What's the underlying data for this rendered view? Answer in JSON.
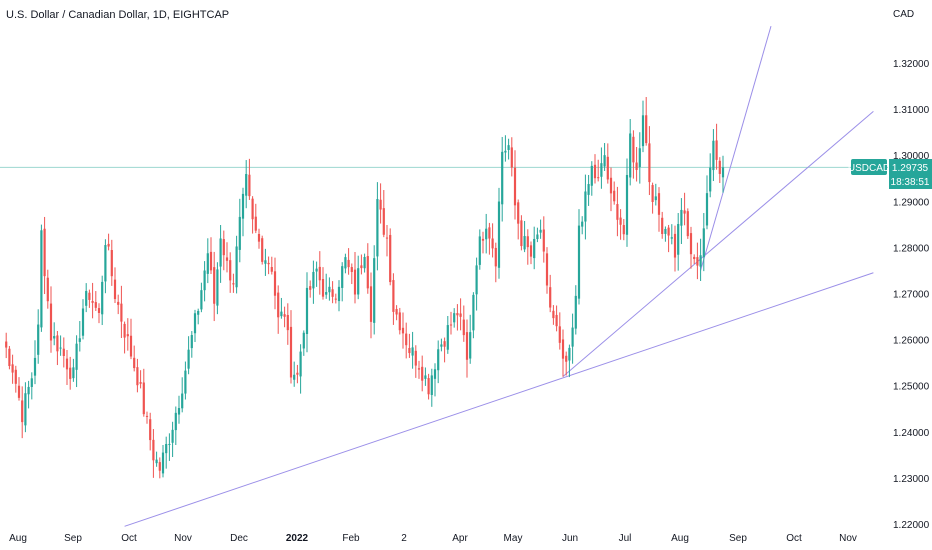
{
  "chart_data": {
    "type": "candlestick",
    "title": "U.S. Dollar / Canadian Dollar, 1D, EIGHTCAP",
    "currency": "CAD",
    "symbol": "USDCAD",
    "last_price": "1.29735",
    "countdown": "18:38:51",
    "y_ticks": [
      "1.32000",
      "1.31000",
      "1.30000",
      "1.29000",
      "1.28000",
      "1.27000",
      "1.26000",
      "1.25000",
      "1.24000",
      "1.23000",
      "1.22000"
    ],
    "ylim": [
      1.22,
      1.325
    ],
    "x_ticks": [
      "Aug",
      "Sep",
      "Oct",
      "Nov",
      "Dec",
      "2022",
      "Feb",
      "2",
      "Apr",
      "May",
      "Jun",
      "Jul",
      "Aug",
      "Sep",
      "Oct",
      "Nov"
    ],
    "colors": {
      "up": "#26a69a",
      "down": "#ef5350",
      "trend": "#9b8fe8",
      "price_line": "#26a69a",
      "text": "#131722"
    },
    "anchors": [
      {
        "i": 0,
        "c": 1.26
      },
      {
        "i": 3,
        "c": 1.254
      },
      {
        "i": 6,
        "c": 1.244
      },
      {
        "i": 9,
        "c": 1.252
      },
      {
        "i": 11,
        "c": 1.262
      },
      {
        "i": 12,
        "c": 1.283
      },
      {
        "i": 15,
        "c": 1.261
      },
      {
        "i": 18,
        "c": 1.258
      },
      {
        "i": 22,
        "c": 1.252
      },
      {
        "i": 25,
        "c": 1.267
      },
      {
        "i": 27,
        "c": 1.27
      },
      {
        "i": 30,
        "c": 1.265
      },
      {
        "i": 32,
        "c": 1.282
      },
      {
        "i": 35,
        "c": 1.27
      },
      {
        "i": 38,
        "c": 1.262
      },
      {
        "i": 42,
        "c": 1.252
      },
      {
        "i": 44,
        "c": 1.245
      },
      {
        "i": 47,
        "c": 1.235
      },
      {
        "i": 49,
        "c": 1.232
      },
      {
        "i": 52,
        "c": 1.239
      },
      {
        "i": 55,
        "c": 1.247
      },
      {
        "i": 58,
        "c": 1.257
      },
      {
        "i": 61,
        "c": 1.267
      },
      {
        "i": 64,
        "c": 1.279
      },
      {
        "i": 66,
        "c": 1.268
      },
      {
        "i": 68,
        "c": 1.283
      },
      {
        "i": 70,
        "c": 1.276
      },
      {
        "i": 72,
        "c": 1.273
      },
      {
        "i": 74,
        "c": 1.285
      },
      {
        "i": 76,
        "c": 1.294
      },
      {
        "i": 78,
        "c": 1.285
      },
      {
        "i": 81,
        "c": 1.279
      },
      {
        "i": 84,
        "c": 1.276
      },
      {
        "i": 86,
        "c": 1.264
      },
      {
        "i": 88,
        "c": 1.266
      },
      {
        "i": 90,
        "c": 1.254
      },
      {
        "i": 92,
        "c": 1.252
      },
      {
        "i": 95,
        "c": 1.269
      },
      {
        "i": 98,
        "c": 1.275
      },
      {
        "i": 101,
        "c": 1.269
      },
      {
        "i": 104,
        "c": 1.271
      },
      {
        "i": 107,
        "c": 1.277
      },
      {
        "i": 110,
        "c": 1.271
      },
      {
        "i": 113,
        "c": 1.28
      },
      {
        "i": 115,
        "c": 1.266
      },
      {
        "i": 117,
        "c": 1.289
      },
      {
        "i": 120,
        "c": 1.282
      },
      {
        "i": 122,
        "c": 1.267
      },
      {
        "i": 124,
        "c": 1.264
      },
      {
        "i": 127,
        "c": 1.258
      },
      {
        "i": 130,
        "c": 1.255
      },
      {
        "i": 133,
        "c": 1.25
      },
      {
        "i": 136,
        "c": 1.258
      },
      {
        "i": 139,
        "c": 1.262
      },
      {
        "i": 142,
        "c": 1.266
      },
      {
        "i": 144,
        "c": 1.26
      },
      {
        "i": 145,
        "c": 1.255
      },
      {
        "i": 148,
        "c": 1.278
      },
      {
        "i": 151,
        "c": 1.286
      },
      {
        "i": 154,
        "c": 1.278
      },
      {
        "i": 156,
        "c": 1.301
      },
      {
        "i": 158,
        "c": 1.302
      },
      {
        "i": 160,
        "c": 1.289
      },
      {
        "i": 162,
        "c": 1.282
      },
      {
        "i": 165,
        "c": 1.278
      },
      {
        "i": 168,
        "c": 1.284
      },
      {
        "i": 170,
        "c": 1.27
      },
      {
        "i": 173,
        "c": 1.262
      },
      {
        "i": 175,
        "c": 1.254
      },
      {
        "i": 177,
        "c": 1.256
      },
      {
        "i": 179,
        "c": 1.268
      },
      {
        "i": 180,
        "c": 1.285
      },
      {
        "i": 182,
        "c": 1.29
      },
      {
        "i": 184,
        "c": 1.297
      },
      {
        "i": 186,
        "c": 1.294
      },
      {
        "i": 188,
        "c": 1.3
      },
      {
        "i": 190,
        "c": 1.29
      },
      {
        "i": 192,
        "c": 1.288
      },
      {
        "i": 194,
        "c": 1.283
      },
      {
        "i": 196,
        "c": 1.304
      },
      {
        "i": 198,
        "c": 1.296
      },
      {
        "i": 200,
        "c": 1.31
      },
      {
        "i": 202,
        "c": 1.295
      },
      {
        "i": 204,
        "c": 1.289
      },
      {
        "i": 206,
        "c": 1.285
      },
      {
        "i": 208,
        "c": 1.284
      },
      {
        "i": 210,
        "c": 1.279
      },
      {
        "i": 212,
        "c": 1.289
      },
      {
        "i": 214,
        "c": 1.282
      },
      {
        "i": 216,
        "c": 1.276
      },
      {
        "i": 218,
        "c": 1.279
      },
      {
        "i": 220,
        "c": 1.29
      },
      {
        "i": 221,
        "c": 1.297
      },
      {
        "i": 222,
        "c": 1.305
      },
      {
        "i": 224,
        "c": 1.296
      },
      {
        "i": 225,
        "c": 1.29735
      }
    ],
    "trendlines": [
      {
        "from": {
          "i": 38,
          "p": 1.2195
        },
        "to": {
          "i": 272,
          "p": 1.2745
        }
      },
      {
        "from": {
          "i": 175,
          "p": 1.252
        },
        "to": {
          "i": 272,
          "p": 1.3095
        }
      },
      {
        "from": {
          "i": 218,
          "p": 1.275
        },
        "to": {
          "i": 240,
          "p": 1.328
        }
      }
    ]
  }
}
